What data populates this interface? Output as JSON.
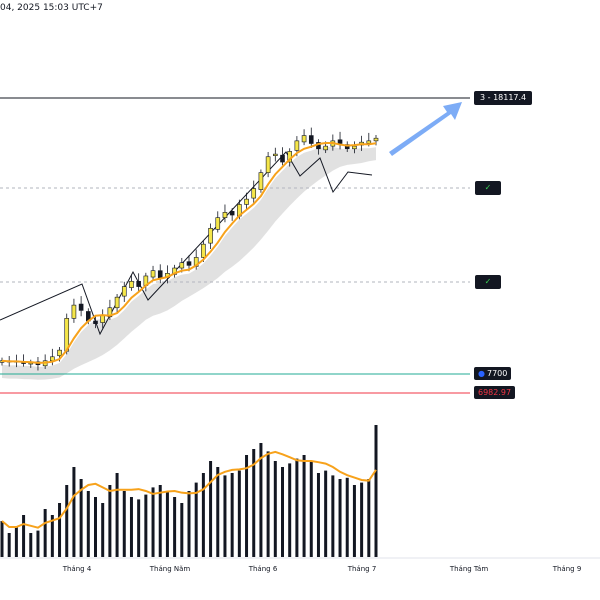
{
  "header": {
    "datetime_text": "04, 2025 15:03 UTC+7"
  },
  "tags": {
    "target": "3 - 18117.4",
    "check_upper": "✓",
    "check_lower": "✓",
    "support_blue": "7700",
    "support_red": "6982.97"
  },
  "colors": {
    "up_candle": "#f5e64a",
    "down_candle": "#131722",
    "ma_orange": "#f7a21b",
    "ma_band": "#dcdcdc",
    "arrow_blue": "#6fa3f5",
    "green_line": "#22ab94",
    "red_line": "#f23645"
  },
  "chart_data": {
    "type": "candlestick",
    "title": "",
    "x_labels": [
      "Tháng 4",
      "Tháng Năm",
      "Tháng 6",
      "Tháng 7",
      "Tháng Tám",
      "Tháng 9"
    ],
    "levels": {
      "target": 18117.4,
      "support_blue": 7700,
      "support_red": 6982.97
    },
    "candles_close_approx": [
      8200,
      8150,
      8180,
      8100,
      8120,
      8050,
      8200,
      8350,
      8600,
      9800,
      10300,
      10100,
      9700,
      9600,
      9900,
      10200,
      10600,
      11000,
      11200,
      11000,
      11400,
      11600,
      11300,
      11500,
      11700,
      11900,
      11800,
      12100,
      12600,
      13200,
      13600,
      13800,
      13700,
      14100,
      14300,
      14700,
      15300,
      15900,
      16000,
      15700,
      16100,
      16500,
      16700,
      16400,
      16200,
      16300,
      16500,
      16400,
      16200,
      16300,
      16450,
      16500,
      16600
    ],
    "volume_approx": [
      30,
      20,
      25,
      35,
      20,
      22,
      40,
      35,
      45,
      60,
      75,
      65,
      55,
      50,
      45,
      60,
      70,
      55,
      50,
      48,
      52,
      58,
      60,
      55,
      50,
      45,
      55,
      62,
      70,
      80,
      75,
      68,
      70,
      72,
      85,
      90,
      95,
      88,
      80,
      75,
      78,
      82,
      85,
      80,
      70,
      72,
      68,
      65,
      66,
      60,
      62,
      65,
      110
    ]
  }
}
